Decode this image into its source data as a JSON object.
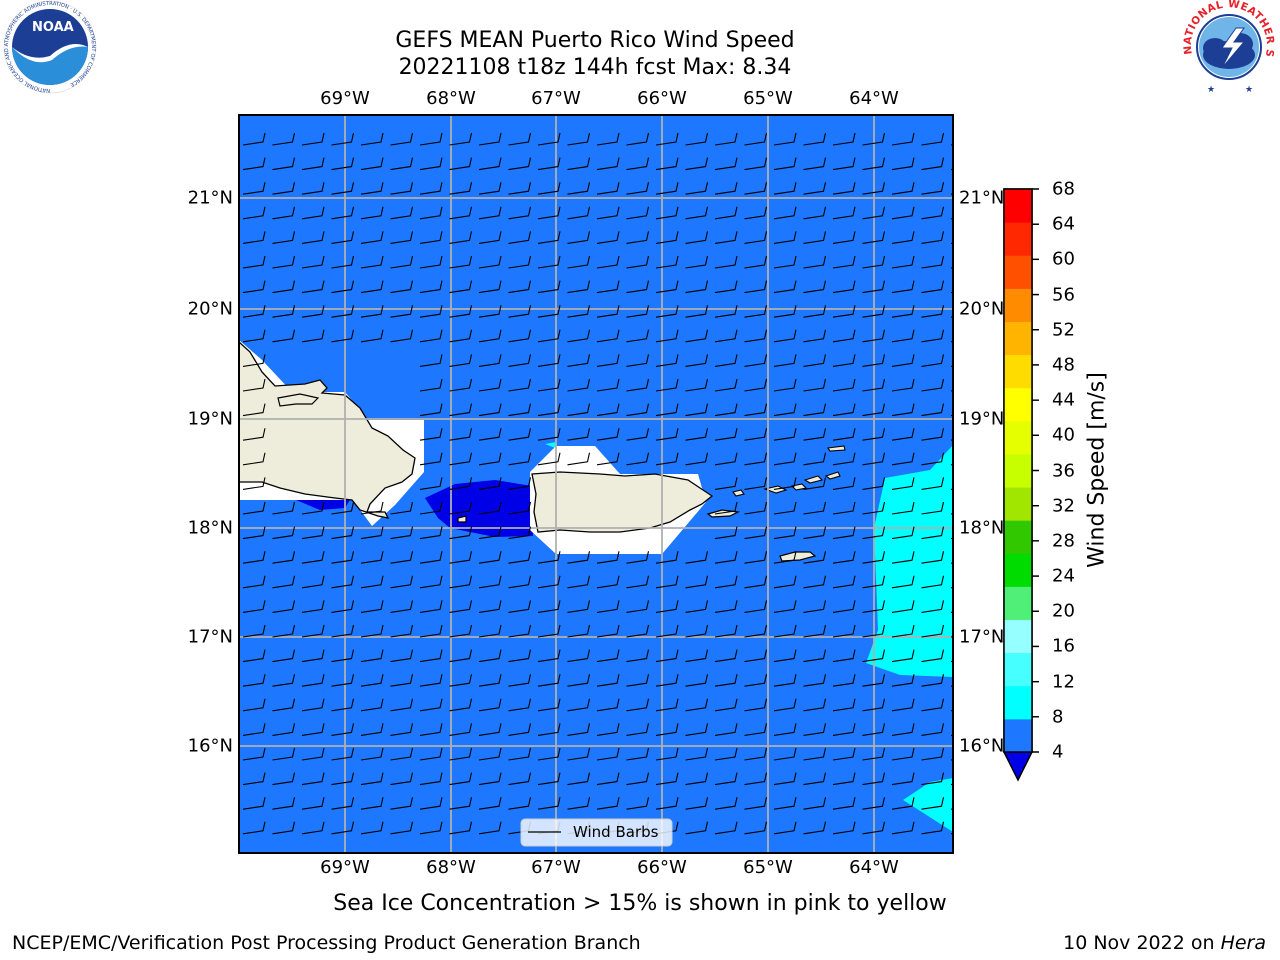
{
  "header": {
    "title_line1": "GEFS MEAN Puerto Rico Wind Speed",
    "title_line2": "20221108 t18z 144h fcst   Max: 8.34"
  },
  "logos": {
    "noaa_text": "NOAA",
    "noaa_ring_text": "NATIONAL OCEANIC AND ATMOSPHERIC ADMINISTRATION · U.S. DEPARTMENT OF COMMERCE",
    "nws_ring_text": "NATIONAL WEATHER SERVICE"
  },
  "map": {
    "lon_range": [
      -70.0,
      -63.25
    ],
    "lat_range": [
      15.0,
      21.75
    ],
    "top_lon_labels": [
      "69°W",
      "68°W",
      "67°W",
      "66°W",
      "65°W",
      "64°W"
    ],
    "bottom_lon_labels": [
      "69°W",
      "68°W",
      "67°W",
      "66°W",
      "65°W",
      "64°W"
    ],
    "left_lat_labels": [
      "21°N",
      "20°N",
      "19°N",
      "18°N",
      "17°N",
      "16°N"
    ],
    "right_lat_labels": [
      "21°N",
      "20°N",
      "19°N",
      "18°N",
      "17°N",
      "16°N"
    ],
    "grid": true,
    "legend_label": "Wind Barbs",
    "field_colors": {
      "ocean_4_8": "#1e78ff",
      "low_below_4": "#0000e6",
      "cyan_8_12": "#00ffff",
      "land": "#eeeddc",
      "missing": "#ffffff"
    }
  },
  "colorbar": {
    "label": "Wind Speed [m/s]",
    "levels": [
      4,
      8,
      12,
      16,
      20,
      24,
      28,
      32,
      36,
      40,
      44,
      48,
      52,
      56,
      60,
      64,
      68
    ],
    "tick_labels": [
      "68",
      "64",
      "60",
      "56",
      "52",
      "48",
      "44",
      "40",
      "36",
      "32",
      "28",
      "24",
      "20",
      "16",
      "12",
      "8",
      "4"
    ],
    "colors": [
      "#1e78ff",
      "#00ffff",
      "#46ffff",
      "#96ffff",
      "#50f078",
      "#00dc00",
      "#32c800",
      "#a0e600",
      "#c8ff00",
      "#e6ff00",
      "#ffff00",
      "#ffdc00",
      "#ffb400",
      "#ff8c00",
      "#ff5000",
      "#ff2800",
      "#ff0000"
    ],
    "extend_below_color": "#0000e6"
  },
  "notes": {
    "sea_ice": "Sea Ice Concentration > 15% is shown in pink to yellow"
  },
  "footer": {
    "left": "NCEP/EMC/Verification Post Processing Product Generation Branch",
    "right_date": "10 Nov 2022 on ",
    "right_machine": "Hera"
  }
}
